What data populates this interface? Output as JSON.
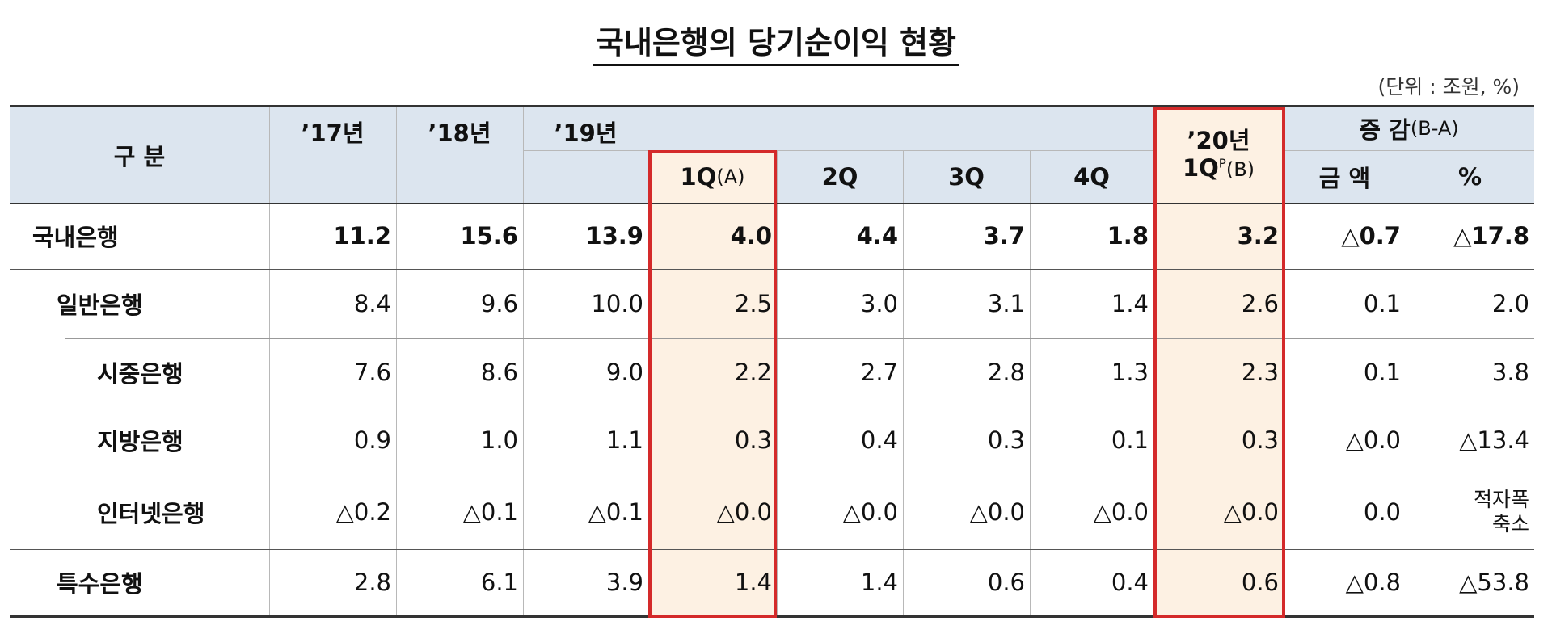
{
  "title": "국내은행의 당기순이익 현황",
  "unit": "(단위 : 조원, %)",
  "header": {
    "category": "구 분",
    "y17": "’17년",
    "y18": "’18년",
    "y19": "’19년",
    "q1": "1Q",
    "q1_note": "(A)",
    "q2": "2Q",
    "q3": "3Q",
    "q4": "4Q",
    "y20": "’20년",
    "y20_q": "1Q",
    "y20_sup": "P",
    "y20_note": "(B)",
    "change": "증 감",
    "change_note": "(B-A)",
    "amount": "금 액",
    "percent": "%"
  },
  "rows": [
    {
      "name": "국내은행",
      "values": [
        "11.2",
        "15.6",
        "13.9",
        "4.0",
        "4.4",
        "3.7",
        "1.8",
        "3.2",
        "△0.7",
        "△17.8"
      ]
    },
    {
      "name": "일반은행",
      "values": [
        "8.4",
        "9.6",
        "10.0",
        "2.5",
        "3.0",
        "3.1",
        "1.4",
        "2.6",
        "0.1",
        "2.0"
      ]
    },
    {
      "name": "시중은행",
      "values": [
        "7.6",
        "8.6",
        "9.0",
        "2.2",
        "2.7",
        "2.8",
        "1.3",
        "2.3",
        "0.1",
        "3.8"
      ]
    },
    {
      "name": "지방은행",
      "values": [
        "0.9",
        "1.0",
        "1.1",
        "0.3",
        "0.4",
        "0.3",
        "0.1",
        "0.3",
        "△0.0",
        "△13.4"
      ]
    },
    {
      "name": "인터넷은행",
      "values": [
        "△0.2",
        "△0.1",
        "△0.1",
        "△0.0",
        "△0.0",
        "△0.0",
        "△0.0",
        "△0.0",
        "0.0",
        [
          "적자폭",
          "축소"
        ]
      ]
    },
    {
      "name": "특수은행",
      "values": [
        "2.8",
        "6.1",
        "3.9",
        "1.4",
        "1.4",
        "0.6",
        "0.4",
        "0.6",
        "△0.8",
        "△53.8"
      ]
    }
  ]
}
